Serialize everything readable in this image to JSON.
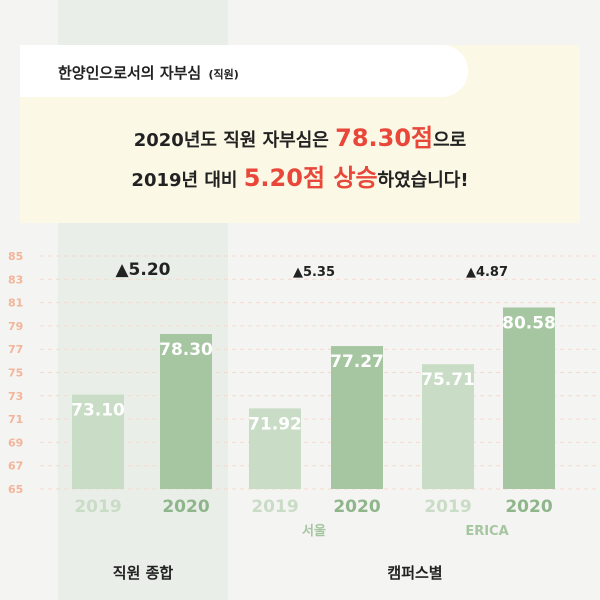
{
  "header": {
    "title": "한양인으로서의 자부심",
    "title_sub": "(직원)"
  },
  "headline": {
    "l1_pre": "2020년도 직원 자부심은 ",
    "l1_hl": "78.30점",
    "l1_post": "으로",
    "l2_pre": "2019년 대비 ",
    "l2_hl": "5.20점 상승",
    "l2_post": "하였습니다!"
  },
  "groups": {
    "overall": "직원 종합",
    "campus": "캠퍼스별"
  },
  "colors": {
    "bar_2019": "#c9dcc5",
    "bar_2020": "#a5c6a0",
    "label_2019": "#c9dcc5",
    "label_2020": "#8fb58a",
    "highlight": "#e8473a",
    "axis_text": "#f2b59a",
    "grid": "#f7d9cc"
  },
  "chart_data": {
    "type": "bar",
    "ylim": [
      65,
      85
    ],
    "yticks": [
      65,
      67,
      69,
      71,
      73,
      75,
      77,
      79,
      81,
      83,
      85
    ],
    "x": [
      "2019",
      "2020",
      "2019",
      "2020",
      "2019",
      "2020"
    ],
    "values": [
      73.1,
      78.3,
      71.92,
      77.27,
      75.71,
      80.58
    ],
    "value_labels": [
      "73.10",
      "78.30",
      "71.92",
      "77.27",
      "75.71",
      "80.58"
    ],
    "subgroups": [
      "",
      "서울",
      "ERICA"
    ],
    "changes": [
      "▲5.20",
      "▲5.35",
      "▲4.87"
    ]
  }
}
